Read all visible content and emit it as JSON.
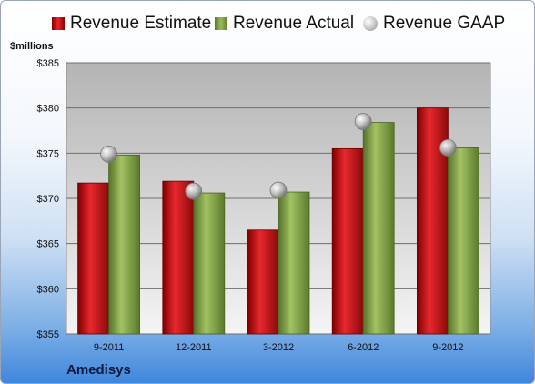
{
  "legend": {
    "estimate": "Revenue Estimate",
    "actual": "Revenue Actual",
    "gaap": "Revenue GAAP"
  },
  "unit_label": "$millions",
  "company": "Amedisys",
  "colors": {
    "estimate": "#d42026",
    "actual": "#8aac4e",
    "gaap": "#b8b8b8",
    "plot_top": "#bfbfbf",
    "plot_bottom": "#f2f2f2"
  },
  "chart_data": {
    "type": "bar",
    "title": "",
    "xlabel": "",
    "ylabel": "$millions",
    "ylim": [
      355,
      385
    ],
    "yticks": [
      355,
      360,
      365,
      370,
      375,
      380,
      385
    ],
    "ytick_labels": [
      "$355",
      "$360",
      "$365",
      "$370",
      "$375",
      "$380",
      "$385"
    ],
    "categories": [
      "9-2011",
      "12-2011",
      "3-2012",
      "6-2012",
      "9-2012"
    ],
    "series": [
      {
        "name": "Revenue Estimate",
        "kind": "bar",
        "values": [
          371.7,
          371.9,
          366.5,
          375.5,
          380.0
        ]
      },
      {
        "name": "Revenue Actual",
        "kind": "bar",
        "values": [
          374.8,
          370.6,
          370.7,
          378.4,
          375.6
        ]
      },
      {
        "name": "Revenue GAAP",
        "kind": "marker",
        "values": [
          374.9,
          370.8,
          370.9,
          378.5,
          375.6
        ]
      }
    ],
    "grid": true,
    "legend_position": "top"
  }
}
